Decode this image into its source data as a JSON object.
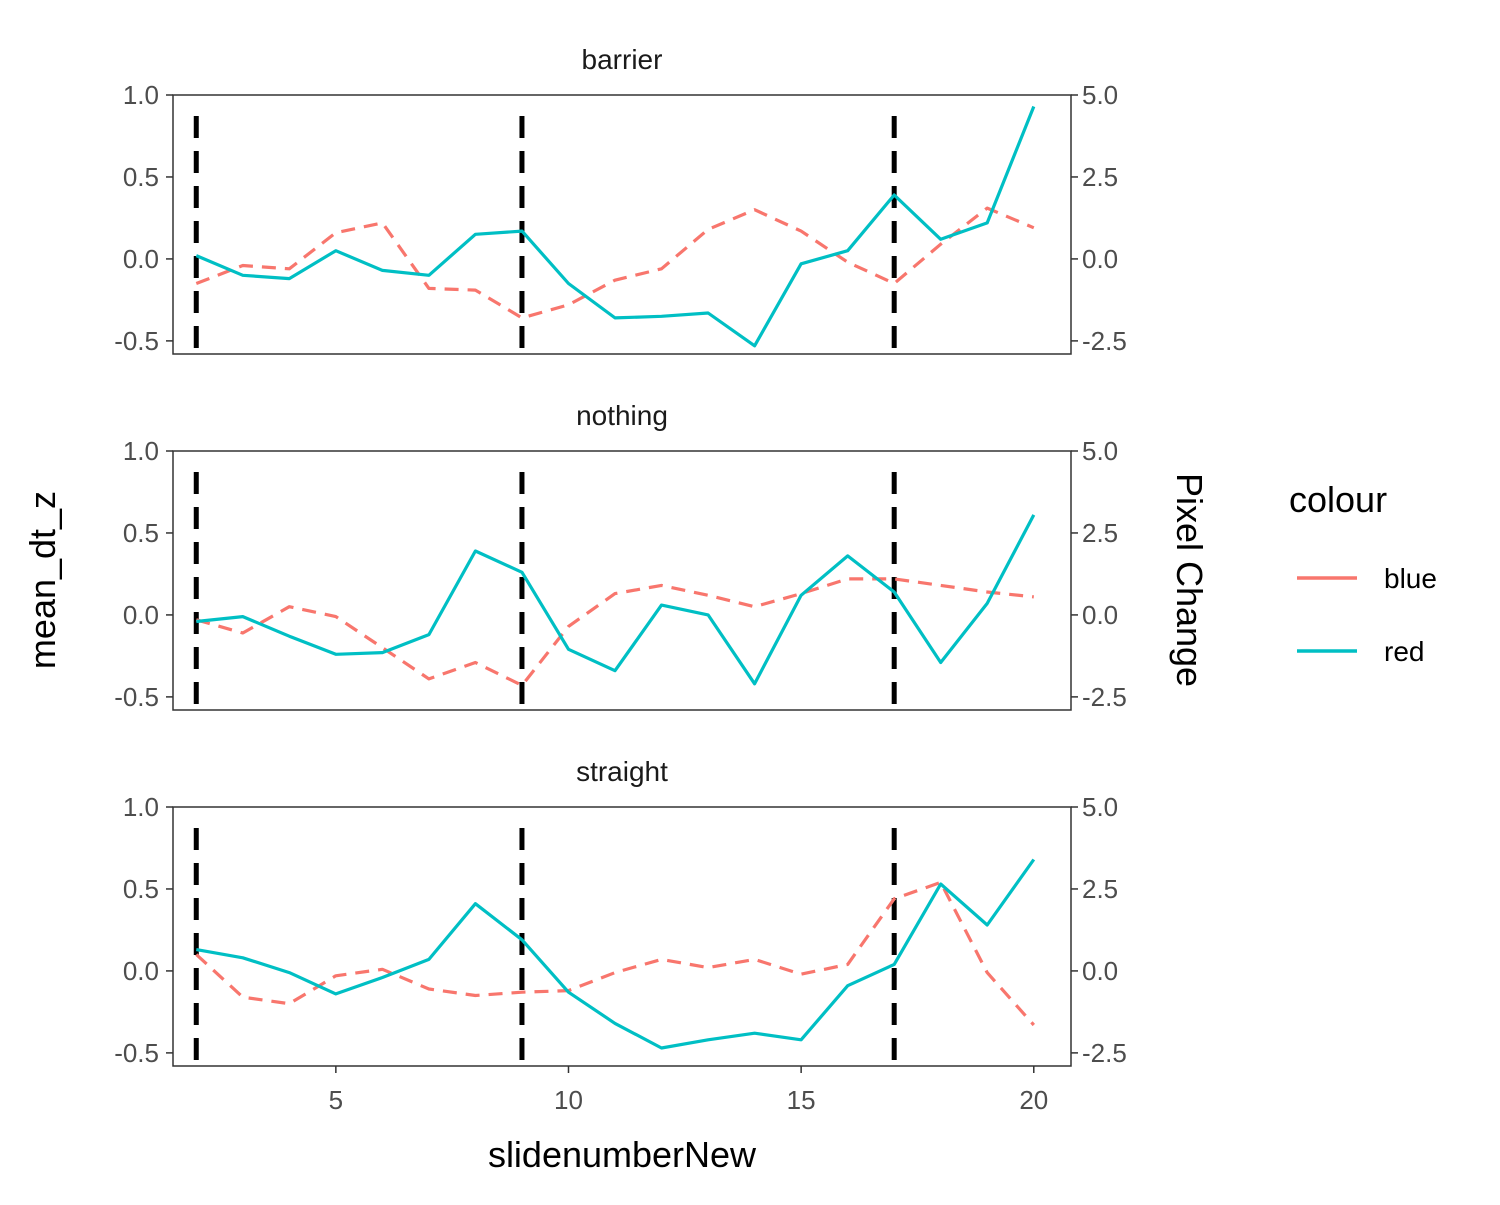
{
  "chart_data": {
    "type": "line",
    "facet_titles": [
      "barrier",
      "nothing",
      "straight"
    ],
    "xlabel": "slidenumberNew",
    "ylabel_left": "mean_dt_z",
    "ylabel_right": "Pixel Change",
    "xlim": [
      1.5,
      20.8
    ],
    "x_ticks": [
      5,
      10,
      15,
      20
    ],
    "x_tick_labels": [
      "5",
      "10",
      "15",
      "20"
    ],
    "ylim_left": [
      -0.58,
      1.0
    ],
    "y_ticks_left": [
      -0.5,
      0.0,
      0.5,
      1.0
    ],
    "y_tick_labels_left": [
      "-0.5",
      "0.0",
      "0.5",
      "1.0"
    ],
    "ylim_right": [
      -2.9,
      5.0
    ],
    "y_ticks_right": [
      -2.5,
      0.0,
      2.5,
      5.0
    ],
    "y_tick_labels_right": [
      "-2.5",
      "0.0",
      "2.5",
      "5.0"
    ],
    "vlines": [
      2,
      9,
      17
    ],
    "grid": false,
    "legend": {
      "title": "colour",
      "position": "right",
      "entries": [
        {
          "label": "blue",
          "color": "#F8766D",
          "dash": "dashed"
        },
        {
          "label": "red",
          "color": "#00BFC4",
          "dash": "solid"
        }
      ]
    },
    "colors": {
      "blue": "#F8766D",
      "red": "#00BFC4",
      "vline": "#000000"
    },
    "x": [
      2,
      3,
      4,
      5,
      6,
      7,
      8,
      9,
      10,
      11,
      12,
      13,
      14,
      15,
      16,
      17,
      18,
      19,
      20
    ],
    "panels": [
      {
        "facet": "barrier",
        "series": [
          {
            "name": "blue",
            "axis": "left",
            "values": [
              -0.15,
              -0.04,
              -0.06,
              0.16,
              0.22,
              -0.18,
              -0.19,
              -0.36,
              -0.28,
              -0.13,
              -0.06,
              0.18,
              0.3,
              0.17,
              -0.02,
              -0.15,
              0.09,
              0.31,
              0.19
            ]
          },
          {
            "name": "red",
            "axis": "left",
            "values": [
              0.02,
              -0.1,
              -0.12,
              0.05,
              -0.07,
              -0.1,
              0.15,
              0.17,
              -0.15,
              -0.36,
              -0.35,
              -0.33,
              -0.53,
              -0.03,
              0.05,
              0.39,
              0.12,
              0.22,
              0.93
            ]
          }
        ]
      },
      {
        "facet": "nothing",
        "series": [
          {
            "name": "blue",
            "axis": "left",
            "values": [
              -0.03,
              -0.11,
              0.05,
              -0.01,
              -0.2,
              -0.39,
              -0.29,
              -0.43,
              -0.07,
              0.13,
              0.18,
              0.12,
              0.05,
              0.13,
              0.22,
              0.22,
              0.18,
              0.14,
              0.11
            ]
          },
          {
            "name": "red",
            "axis": "left",
            "values": [
              -0.04,
              -0.01,
              -0.13,
              -0.24,
              -0.23,
              -0.12,
              0.39,
              0.26,
              -0.21,
              -0.34,
              0.06,
              0.0,
              -0.42,
              0.12,
              0.36,
              0.14,
              -0.29,
              0.07,
              0.61
            ]
          }
        ]
      },
      {
        "facet": "straight",
        "series": [
          {
            "name": "blue",
            "axis": "left",
            "values": [
              0.1,
              -0.16,
              -0.2,
              -0.03,
              0.01,
              -0.11,
              -0.15,
              -0.13,
              -0.12,
              -0.01,
              0.07,
              0.02,
              0.07,
              -0.02,
              0.04,
              0.44,
              0.54,
              -0.01,
              -0.33
            ]
          },
          {
            "name": "red",
            "axis": "left",
            "values": [
              0.13,
              0.08,
              -0.01,
              -0.14,
              -0.04,
              0.07,
              0.41,
              0.19,
              -0.13,
              -0.32,
              -0.47,
              -0.42,
              -0.38,
              -0.42,
              -0.09,
              0.04,
              0.53,
              0.28,
              0.68
            ]
          }
        ]
      }
    ]
  }
}
